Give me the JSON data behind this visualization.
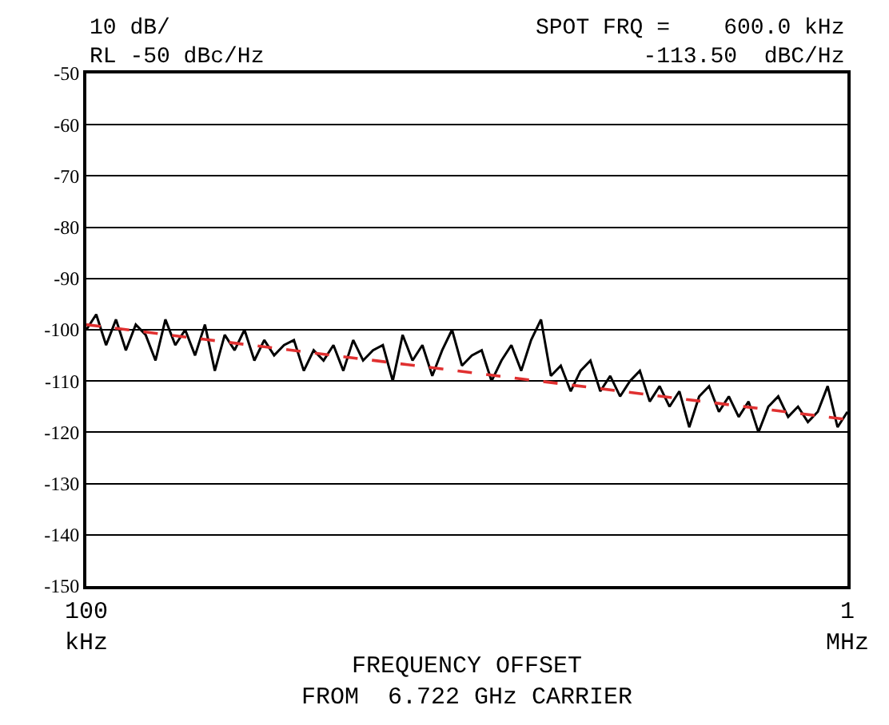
{
  "chart_data": {
    "type": "line",
    "annotations": [
      "10 dB/\nRL -50 dBc/Hz",
      "SPOT FRQ =    600.0 kHz\n-113.50  dBC/Hz"
    ],
    "xlabel": "FREQUENCY OFFSET\nFROM  6.722 GHz CARRIER",
    "grid": "y",
    "marker": "none",
    "categories": [
      "100\nkHz",
      null,
      null,
      null,
      null,
      null,
      null,
      null,
      null,
      null,
      null,
      null,
      null,
      null,
      null,
      null,
      null,
      null,
      null,
      null,
      null,
      null,
      null,
      null,
      null,
      null,
      null,
      null,
      null,
      null,
      null,
      null,
      null,
      null,
      null,
      null,
      null,
      null,
      null,
      null,
      null,
      null,
      null,
      null,
      null,
      null,
      null,
      null,
      null,
      null,
      null,
      null,
      null,
      null,
      null,
      null,
      null,
      null,
      null,
      null,
      null,
      null,
      null,
      null,
      null,
      null,
      null,
      null,
      null,
      null,
      null,
      null,
      null,
      null,
      null,
      null,
      null,
      "1\nMHz"
    ],
    "ylim": [
      -150,
      -50
    ],
    "yticks": [
      -150,
      -140,
      -130,
      -120,
      -110,
      -100,
      -90,
      -80,
      -70,
      -60,
      -50
    ],
    "series": [
      {
        "color": "#000000",
        "line_style": "solid",
        "values": [
          -100,
          -97,
          -103,
          -98,
          -104,
          -99,
          -101,
          -106,
          -98,
          -103,
          -100,
          -105,
          -99,
          -108,
          -101,
          -104,
          -100,
          -106,
          -102,
          -105,
          -103,
          -102,
          -108,
          -104,
          -106,
          -103,
          -108,
          -102,
          -106,
          -104,
          -103,
          -110,
          -101,
          -106,
          -103,
          -109,
          -104,
          -100,
          -107,
          -105,
          -104,
          -110,
          -106,
          -103,
          -108,
          -102,
          -98,
          -109,
          -107,
          -112,
          -108,
          -106,
          -112,
          -109,
          -113,
          -110,
          -108,
          -114,
          -111,
          -115,
          -112,
          -119,
          -113,
          -111,
          -116,
          -113,
          -117,
          -114,
          -120,
          -115,
          -113,
          -117,
          -115,
          -118,
          -116,
          -111,
          -119,
          -116
        ]
      },
      {
        "color": "#e03030",
        "line_style": "dashed",
        "values": [
          -99,
          null,
          null,
          null,
          null,
          null,
          null,
          null,
          null,
          null,
          null,
          null,
          null,
          null,
          null,
          null,
          null,
          null,
          null,
          null,
          null,
          null,
          null,
          null,
          null,
          null,
          null,
          null,
          null,
          null,
          null,
          null,
          null,
          null,
          null,
          null,
          null,
          null,
          null,
          null,
          null,
          null,
          null,
          null,
          null,
          null,
          null,
          null,
          null,
          null,
          null,
          null,
          null,
          null,
          null,
          null,
          null,
          null,
          null,
          null,
          null,
          null,
          null,
          null,
          null,
          null,
          null,
          null,
          null,
          null,
          null,
          null,
          null,
          null,
          null,
          null,
          null,
          -117.5
        ]
      }
    ]
  }
}
